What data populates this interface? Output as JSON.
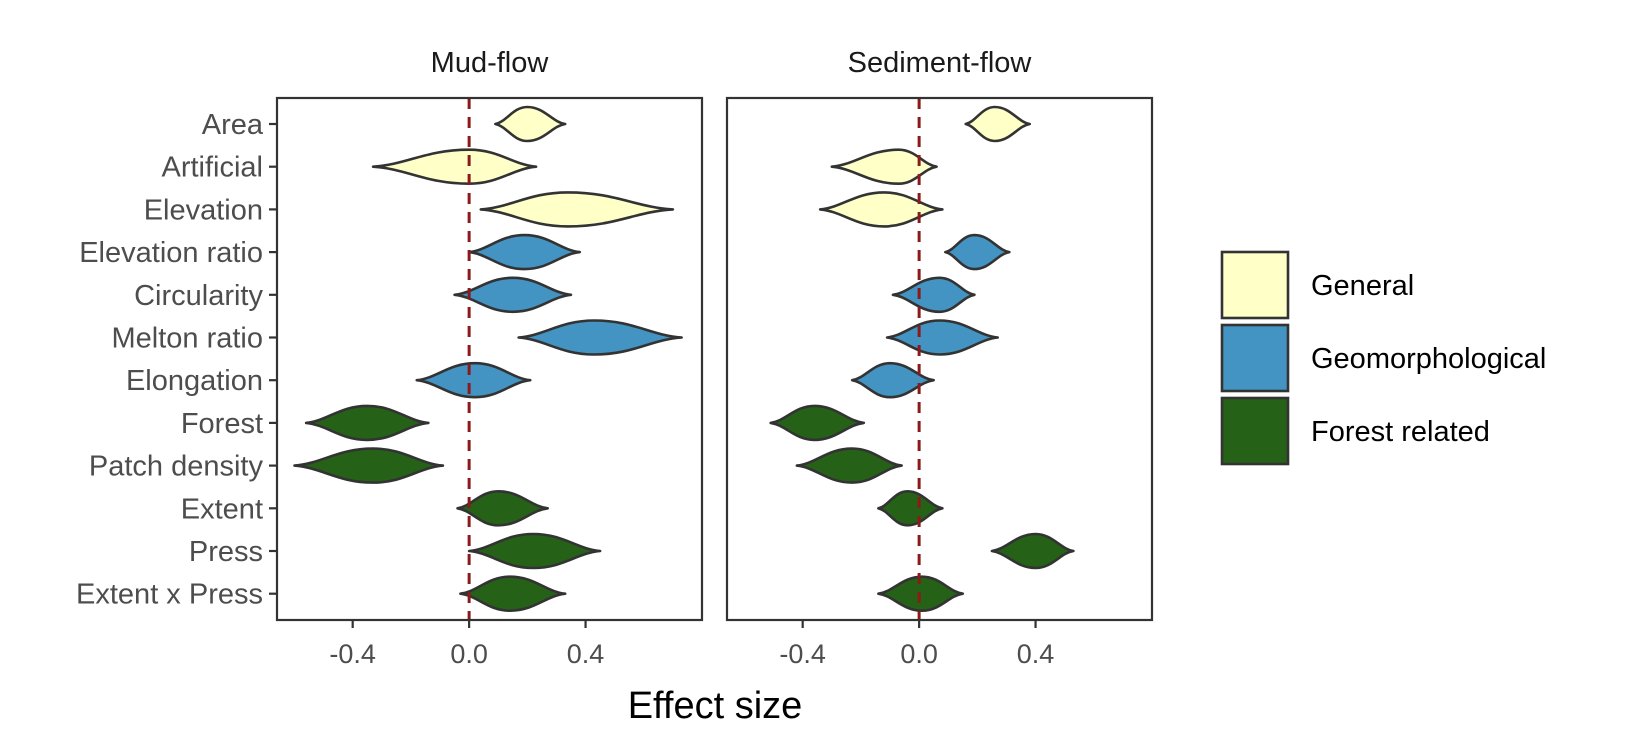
{
  "chart_data": {
    "type": "violin",
    "xlabel": "Effect size",
    "xlim": [
      -0.66,
      0.8
    ],
    "xticks": [
      -0.4,
      0.0,
      0.4
    ],
    "xtick_labels": [
      "-0.4",
      "0.0",
      "0.4"
    ],
    "reference_line": 0,
    "categories": [
      "Area",
      "Artificial",
      "Elevation",
      "Elevation ratio",
      "Circularity",
      "Melton ratio",
      "Elongation",
      "Forest",
      "Patch density",
      "Extent",
      "Press",
      "Extent x Press"
    ],
    "groups": [
      {
        "name": "General",
        "color": "#ffffc8"
      },
      {
        "name": "Geomorphological",
        "color": "#4393c3"
      },
      {
        "name": "Forest related",
        "color": "#256217"
      }
    ],
    "category_group": [
      "General",
      "General",
      "General",
      "Geomorphological",
      "Geomorphological",
      "Geomorphological",
      "Geomorphological",
      "Forest related",
      "Forest related",
      "Forest related",
      "Forest related",
      "Forest related"
    ],
    "panels": [
      {
        "title": "Mud-flow",
        "violins": [
          {
            "min": 0.09,
            "center": 0.2,
            "max": 0.33
          },
          {
            "min": -0.33,
            "center": 0.0,
            "max": 0.23
          },
          {
            "min": 0.04,
            "center": 0.34,
            "max": 0.7
          },
          {
            "min": 0.0,
            "center": 0.19,
            "max": 0.38
          },
          {
            "min": -0.05,
            "center": 0.15,
            "max": 0.35
          },
          {
            "min": 0.17,
            "center": 0.43,
            "max": 0.73
          },
          {
            "min": -0.18,
            "center": 0.02,
            "max": 0.21
          },
          {
            "min": -0.56,
            "center": -0.35,
            "max": -0.14
          },
          {
            "min": -0.6,
            "center": -0.33,
            "max": -0.09
          },
          {
            "min": -0.04,
            "center": 0.1,
            "max": 0.27
          },
          {
            "min": 0.0,
            "center": 0.22,
            "max": 0.45
          },
          {
            "min": -0.03,
            "center": 0.14,
            "max": 0.33
          }
        ]
      },
      {
        "title": "Sediment-flow",
        "violins": [
          {
            "min": 0.16,
            "center": 0.26,
            "max": 0.38
          },
          {
            "min": -0.3,
            "center": -0.07,
            "max": 0.06
          },
          {
            "min": -0.34,
            "center": -0.12,
            "max": 0.08
          },
          {
            "min": 0.09,
            "center": 0.19,
            "max": 0.31
          },
          {
            "min": -0.09,
            "center": 0.07,
            "max": 0.19
          },
          {
            "min": -0.11,
            "center": 0.07,
            "max": 0.27
          },
          {
            "min": -0.23,
            "center": -0.1,
            "max": 0.05
          },
          {
            "min": -0.51,
            "center": -0.36,
            "max": -0.19
          },
          {
            "min": -0.42,
            "center": -0.23,
            "max": -0.06
          },
          {
            "min": -0.14,
            "center": -0.04,
            "max": 0.08
          },
          {
            "min": 0.25,
            "center": 0.4,
            "max": 0.53
          },
          {
            "min": -0.14,
            "center": 0.01,
            "max": 0.15
          }
        ]
      }
    ],
    "legend_position": "right"
  }
}
